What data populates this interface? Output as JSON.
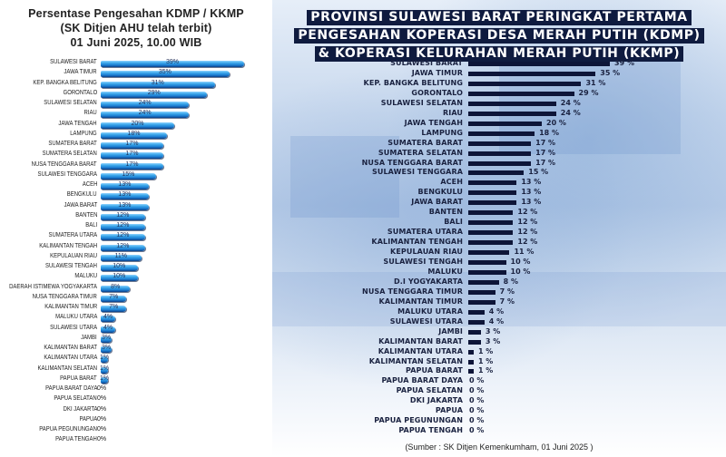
{
  "chart_data": [
    {
      "type": "bar",
      "orientation": "horizontal",
      "title": "Persentase Pengesahan KDMP / KKMP",
      "subtitle": "(SK Ditjen AHU telah terbit)",
      "date_line": "01 Juni 2025, 10.00 WIB",
      "xlabel": "",
      "ylabel": "",
      "xlim": [
        0,
        39
      ],
      "grid": false,
      "categories": [
        "SULAWESI BARAT",
        "JAWA TIMUR",
        "KEP. BANGKA BELITUNG",
        "GORONTALO",
        "SULAWESI SELATAN",
        "RIAU",
        "JAWA TENGAH",
        "LAMPUNG",
        "SUMATERA BARAT",
        "SUMATERA SELATAN",
        "NUSA TENGGARA BARAT",
        "SULAWESI TENGGARA",
        "ACEH",
        "BENGKULU",
        "JAWA BARAT",
        "BANTEN",
        "BALI",
        "SUMATERA UTARA",
        "KALIMANTAN TENGAH",
        "KEPULAUAN RIAU",
        "SULAWESI TENGAH",
        "MALUKU",
        "DAERAH ISTIMEWA YOGYAKARTA",
        "NUSA TENGGARA TIMUR",
        "KALIMANTAN TIMUR",
        "MALUKU UTARA",
        "SULAWESI UTARA",
        "JAMBI",
        "KALIMANTAN BARAT",
        "KALIMANTAN UTARA",
        "KALIMANTAN SELATAN",
        "PAPUA BARAT",
        "PAPUA BARAT DAYA",
        "PAPUA SELATAN",
        "DKI JAKARTA",
        "PAPUA",
        "PAPUA PEGUNUNGAN",
        "PAPUA TENGAH"
      ],
      "values": [
        39,
        35,
        31,
        29,
        24,
        24,
        20,
        18,
        17,
        17,
        17,
        15,
        13,
        13,
        13,
        12,
        12,
        12,
        12,
        11,
        10,
        10,
        8,
        7,
        7,
        4,
        4,
        3,
        3,
        1,
        1,
        1,
        0,
        0,
        0,
        0,
        0,
        0
      ],
      "value_labels": [
        "39%",
        "35%",
        "31%",
        "29%",
        "24%",
        "24%",
        "20%",
        "18%",
        "17%",
        "17%",
        "17%",
        "15%",
        "13%",
        "13%",
        "13%",
        "12%",
        "12%",
        "12%",
        "12%",
        "11%",
        "10%",
        "10%",
        "8%",
        "7%",
        "7%",
        "4%",
        "4%",
        "3%",
        "3%",
        "1%",
        "1%",
        "1%",
        "0%",
        "0%",
        "0%",
        "0%",
        "0%",
        "0%"
      ],
      "bar_color": "#2a94e0"
    },
    {
      "type": "bar",
      "orientation": "horizontal",
      "title_lines": [
        "PROVINSI SULAWESI BARAT PERINGKAT PERTAMA",
        "PENGESAHAN KOPERASI DESA MERAH PUTIH (KDMP)",
        "& KOPERASI KELURAHAN MERAH PUTIH (KKMP)"
      ],
      "xlabel": "",
      "ylabel": "",
      "xlim": [
        0,
        39
      ],
      "grid": false,
      "categories": [
        "SULAWESI BARAT",
        "JAWA TIMUR",
        "KEP. BANGKA BELITUNG",
        "GORONTALO",
        "SULAWESI SELATAN",
        "RIAU",
        "JAWA TENGAH",
        "LAMPUNG",
        "SUMATERA BARAT",
        "SUMATERA SELATAN",
        "NUSA TENGGARA BARAT",
        "SULAWESI TENGGARA",
        "ACEH",
        "BENGKULU",
        "JAWA BARAT",
        "BANTEN",
        "BALI",
        "SUMATERA UTARA",
        "KALIMANTAN TENGAH",
        "KEPULAUAN RIAU",
        "SULAWESI TENGAH",
        "MALUKU",
        "D.I YOGYAKARTA",
        "NUSA TENGGARA TIMUR",
        "KALIMANTAN TIMUR",
        "MALUKU UTARA",
        "SULAWESI UTARA",
        "JAMBI",
        "KALIMANTAN BARAT",
        "KALIMANTAN UTARA",
        "KALIMANTAN SELATAN",
        "PAPUA BARAT",
        "PAPUA BARAT DAYA",
        "PAPUA SELATAN",
        "DKI JAKARTA",
        "PAPUA",
        "PAPUA PEGUNUNGAN",
        "PAPUA TENGAH"
      ],
      "values": [
        39,
        35,
        31,
        29,
        24,
        24,
        20,
        18,
        17,
        17,
        17,
        15,
        13,
        13,
        13,
        12,
        12,
        12,
        12,
        11,
        10,
        10,
        8,
        7,
        7,
        4,
        4,
        3,
        3,
        1,
        1,
        1,
        0,
        0,
        0,
        0,
        0,
        0
      ],
      "value_labels": [
        "39 %",
        "35 %",
        "31 %",
        "29 %",
        "24 %",
        "24 %",
        "20 %",
        "18 %",
        "17 %",
        "17 %",
        "17 %",
        "15 %",
        "13 %",
        "13 %",
        "13 %",
        "12 %",
        "12 %",
        "12 %",
        "12 %",
        "11 %",
        "10 %",
        "10 %",
        "8 %",
        "7 %",
        "7 %",
        "4 %",
        "4 %",
        "3 %",
        "3 %",
        "1 %",
        "1 %",
        "1 %",
        "0 %",
        "0 %",
        "0 %",
        "0 %",
        "0 %",
        "0 %"
      ],
      "bar_color": "#0d1538",
      "source": "(Sumber : SK Ditjen Kemenkumham, 01 Juni 2025 )"
    }
  ]
}
